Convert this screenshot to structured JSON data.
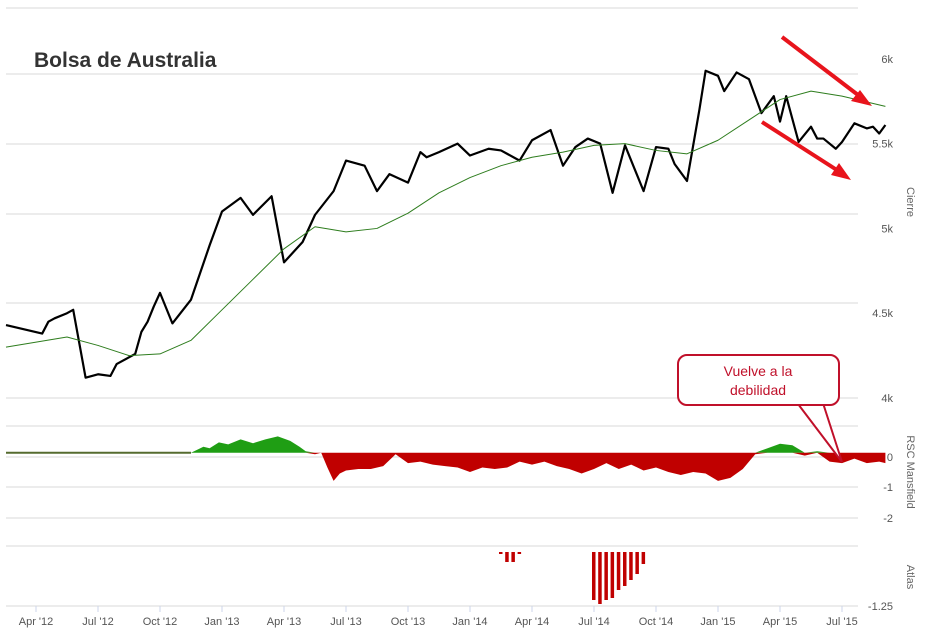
{
  "chart_data": {
    "title": "Bolsa de Australia",
    "type": "line",
    "x_labels": [
      "Apr '12",
      "Jul '12",
      "Oct '12",
      "Jan '13",
      "Apr '13",
      "Jul '13",
      "Oct '13",
      "Jan '14",
      "Apr '14",
      "Jul '14",
      "Oct '14",
      "Jan '15",
      "Apr '15",
      "Jul '15"
    ],
    "panels": [
      {
        "name": "price",
        "ylabel": "Cierre",
        "y_ticks": [
          "4k",
          "4.5k",
          "5k",
          "5.5k",
          "6k"
        ],
        "ylim": [
          4000,
          6300
        ],
        "series": [
          {
            "kind": "price",
            "color": "#000000",
            "x": [
              0,
              0.1,
              0.2,
              0.3,
              0.5,
              0.6,
              0.8,
              1,
              1.2,
              1.3,
              1.6,
              1.7,
              1.8,
              1.9,
              2,
              2.2,
              2.5,
              2.8,
              3,
              3.3,
              3.5,
              3.8,
              4,
              4.3,
              4.5,
              4.8,
              5,
              5.3,
              5.5,
              5.7,
              6,
              6.2,
              6.3,
              6.5,
              6.8,
              7,
              7.3,
              7.5,
              7.8,
              8,
              8.3,
              8.5,
              8.7,
              8.9,
              9.1,
              9.3,
              9.5,
              9.8,
              10,
              10.2,
              10.3,
              10.5,
              10.7,
              10.8,
              11,
              11.1,
              11.3,
              11.5,
              11.7,
              11.9,
              12,
              12.1,
              12.3,
              12.5,
              12.6,
              12.7,
              12.9,
              13,
              13.2,
              13.4,
              13.5,
              13.6,
              13.7
            ],
            "y": [
              4430,
              4380,
              4450,
              4470,
              4500,
              4520,
              4120,
              4140,
              4130,
              4200,
              4260,
              4390,
              4450,
              4540,
              4620,
              4440,
              4580,
              4900,
              5100,
              5180,
              5080,
              5190,
              4800,
              4920,
              5080,
              5220,
              5400,
              5370,
              5220,
              5320,
              5270,
              5450,
              5420,
              5450,
              5500,
              5430,
              5470,
              5460,
              5400,
              5520,
              5580,
              5370,
              5480,
              5530,
              5500,
              5210,
              5490,
              5220,
              5480,
              5470,
              5380,
              5280,
              5700,
              5930,
              5900,
              5810,
              5920,
              5880,
              5680,
              5780,
              5630,
              5780,
              5510,
              5600,
              5530,
              5530,
              5470,
              5510,
              5620,
              5590,
              5600,
              5560,
              5610
            ]
          },
          {
            "kind": "moving_average",
            "color": "#2e7d1e",
            "x": [
              0,
              0.5,
              1,
              1.5,
              2,
              2.5,
              3,
              3.5,
              4,
              4.5,
              5,
              5.5,
              6,
              6.5,
              7,
              7.5,
              8,
              8.5,
              9,
              9.5,
              10,
              10.5,
              11,
              11.5,
              12,
              12.5,
              13,
              13.7
            ],
            "y": [
              4300,
              4360,
              4310,
              4250,
              4260,
              4340,
              4520,
              4700,
              4880,
              5010,
              4980,
              5000,
              5090,
              5210,
              5300,
              5370,
              5420,
              5450,
              5490,
              5500,
              5460,
              5440,
              5520,
              5640,
              5760,
              5810,
              5780,
              5720
            ]
          }
        ]
      },
      {
        "name": "rsc",
        "ylabel": "RSC Mansfield",
        "y_ticks": [
          "0",
          "-1",
          "-2"
        ],
        "ylim": [
          -2.2,
          0.9
        ],
        "series": [
          {
            "kind": "area",
            "x": [
              0,
              2.5,
              2.55,
              2.7,
              2.8,
              2.95,
              3.1,
              3.3,
              3.5,
              3.7,
              3.9,
              4.1,
              4.25,
              4.35,
              4.5,
              4.6,
              4.7,
              4.8,
              4.9,
              5.0,
              5.2,
              5.4,
              5.6,
              5.8,
              6.0,
              6.2,
              6.4,
              6.6,
              6.8,
              7.0,
              7.2,
              7.4,
              7.6,
              7.8,
              8.0,
              8.2,
              8.4,
              8.6,
              8.8,
              9.0,
              9.2,
              9.4,
              9.6,
              9.8,
              10.0,
              10.2,
              10.4,
              10.6,
              10.8,
              11.0,
              11.2,
              11.4,
              11.6,
              11.8,
              12.0,
              12.2,
              12.4,
              12.6,
              12.8,
              13.0,
              13.2,
              13.4,
              13.6,
              13.7
            ],
            "y": [
              0,
              0,
              0.05,
              0.2,
              0.15,
              0.35,
              0.28,
              0.45,
              0.32,
              0.45,
              0.55,
              0.4,
              0.2,
              0.05,
              -0.05,
              0,
              -0.5,
              -0.95,
              -0.7,
              -0.6,
              -0.55,
              -0.55,
              -0.45,
              -0.05,
              -0.35,
              -0.3,
              -0.4,
              -0.45,
              -0.5,
              -0.65,
              -0.5,
              -0.55,
              -0.5,
              -0.3,
              -0.4,
              -0.3,
              -0.45,
              -0.55,
              -0.7,
              -0.55,
              -0.35,
              -0.55,
              -0.4,
              -0.6,
              -0.5,
              -0.65,
              -0.75,
              -0.65,
              -0.7,
              -0.95,
              -0.85,
              -0.55,
              -0.05,
              0.15,
              0.3,
              0.25,
              -0.1,
              0.05,
              -0.3,
              -0.35,
              -0.2,
              -0.35,
              -0.3,
              -0.35
            ]
          }
        ]
      },
      {
        "name": "atlas",
        "ylabel": "Atlas",
        "y_ticks": [
          "-1.25"
        ],
        "ylim": [
          -1.35,
          0.15
        ],
        "series": [
          {
            "kind": "bars",
            "color": "#c00000",
            "x": [
              7.5,
              7.6,
              7.7,
              7.8,
              9.0,
              9.1,
              9.2,
              9.3,
              9.4,
              9.5,
              9.6,
              9.7,
              9.8
            ],
            "y": [
              -0.05,
              -0.25,
              -0.25,
              -0.05,
              -1.2,
              -1.3,
              -1.2,
              -1.15,
              -0.95,
              -0.85,
              -0.7,
              -0.55,
              -0.3
            ]
          }
        ]
      }
    ],
    "annotations": [
      {
        "type": "callout",
        "text_lines": [
          "Vuelve a la",
          "debilidad"
        ]
      }
    ]
  }
}
